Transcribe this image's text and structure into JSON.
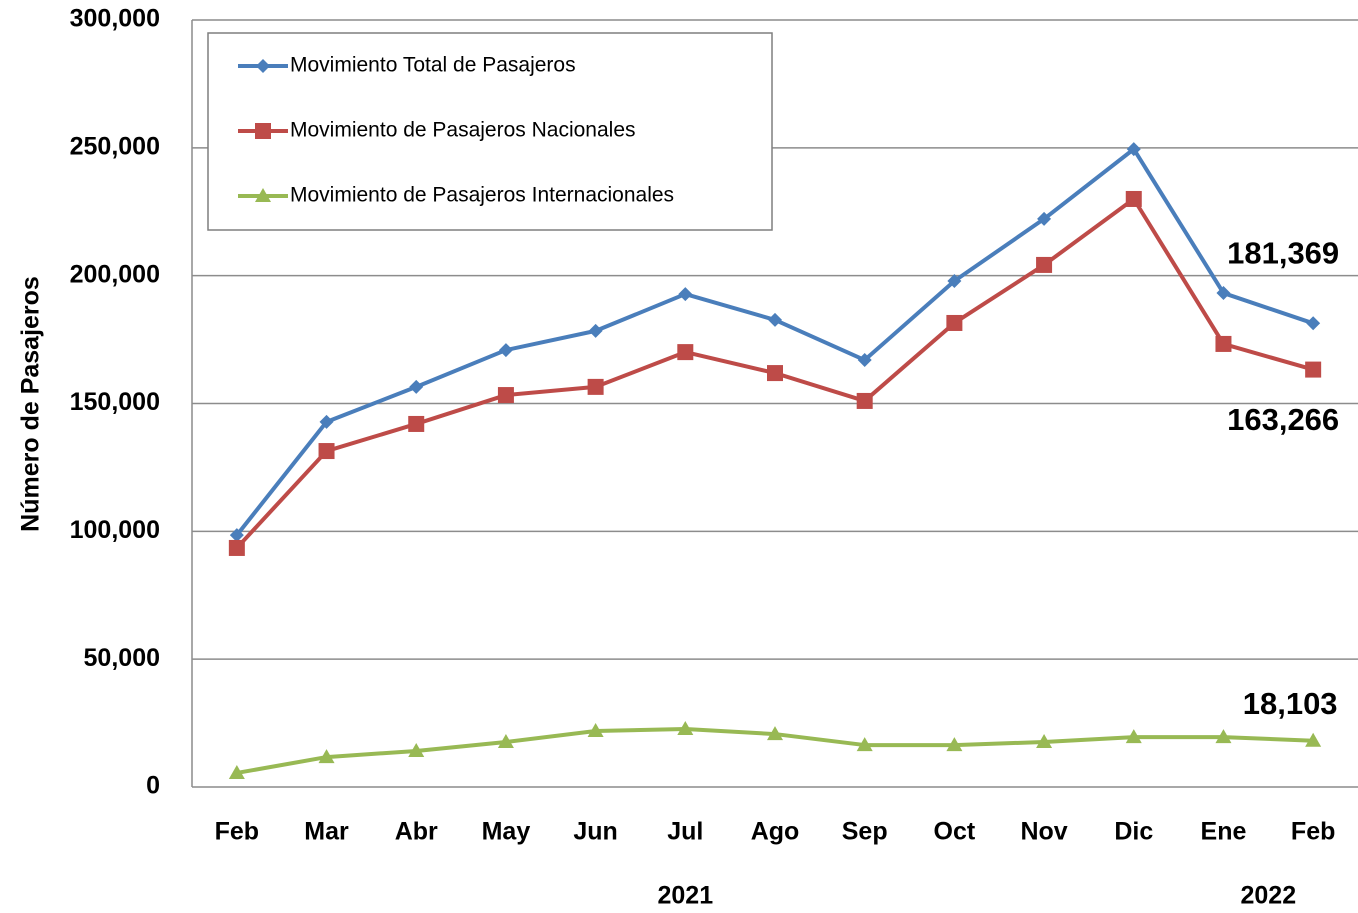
{
  "chart_data": {
    "type": "line",
    "y_label": "Número de Pasajeros",
    "categories": [
      "Feb",
      "Mar",
      "Abr",
      "May",
      "Jun",
      "Jul",
      "Ago",
      "Sep",
      "Oct",
      "Nov",
      "Dic",
      "Ene",
      "Feb"
    ],
    "year_labels": [
      "2021",
      "2022"
    ],
    "series": [
      {
        "name": "Movimiento Total de Pasajeros",
        "color": "#4a7ebb",
        "marker": "diamond",
        "values": [
          98500,
          142800,
          156500,
          170900,
          178400,
          192800,
          182700,
          167000,
          197900,
          222200,
          249500,
          193200,
          181369
        ],
        "value_labels": [
          null,
          null,
          null,
          null,
          null,
          null,
          null,
          null,
          null,
          null,
          null,
          null,
          "181,369"
        ]
      },
      {
        "name": "Movimiento de Pasajeros Nacionales",
        "color": "#be4b48",
        "marker": "square",
        "values": [
          93500,
          131400,
          142000,
          153300,
          156500,
          170100,
          161900,
          151000,
          181500,
          204200,
          230000,
          173300,
          163266
        ],
        "value_labels": [
          null,
          null,
          null,
          null,
          null,
          null,
          null,
          null,
          null,
          null,
          null,
          null,
          "163,266"
        ]
      },
      {
        "name": "Movimiento de Pasajeros Internacionales",
        "color": "#98b954",
        "marker": "triangle",
        "values": [
          5500,
          11700,
          14100,
          17600,
          21900,
          22700,
          20700,
          16400,
          16400,
          17600,
          19500,
          19500,
          18103
        ],
        "value_labels": [
          null,
          null,
          null,
          null,
          null,
          null,
          null,
          null,
          null,
          null,
          null,
          null,
          "18,103"
        ]
      }
    ],
    "ylim": [
      0,
      300000
    ],
    "yticks": [
      0,
      {
        "value": 50000,
        "label": "50,000"
      },
      {
        "value": 100000,
        "label": "100,000"
      },
      {
        "value": 150000,
        "label": "150,000"
      },
      {
        "value": 200000,
        "label": "200,000"
      },
      {
        "value": 250000,
        "label": "250,000"
      },
      {
        "value": 300000,
        "label": "300,000"
      }
    ],
    "grid": true,
    "legend": "top-left"
  }
}
